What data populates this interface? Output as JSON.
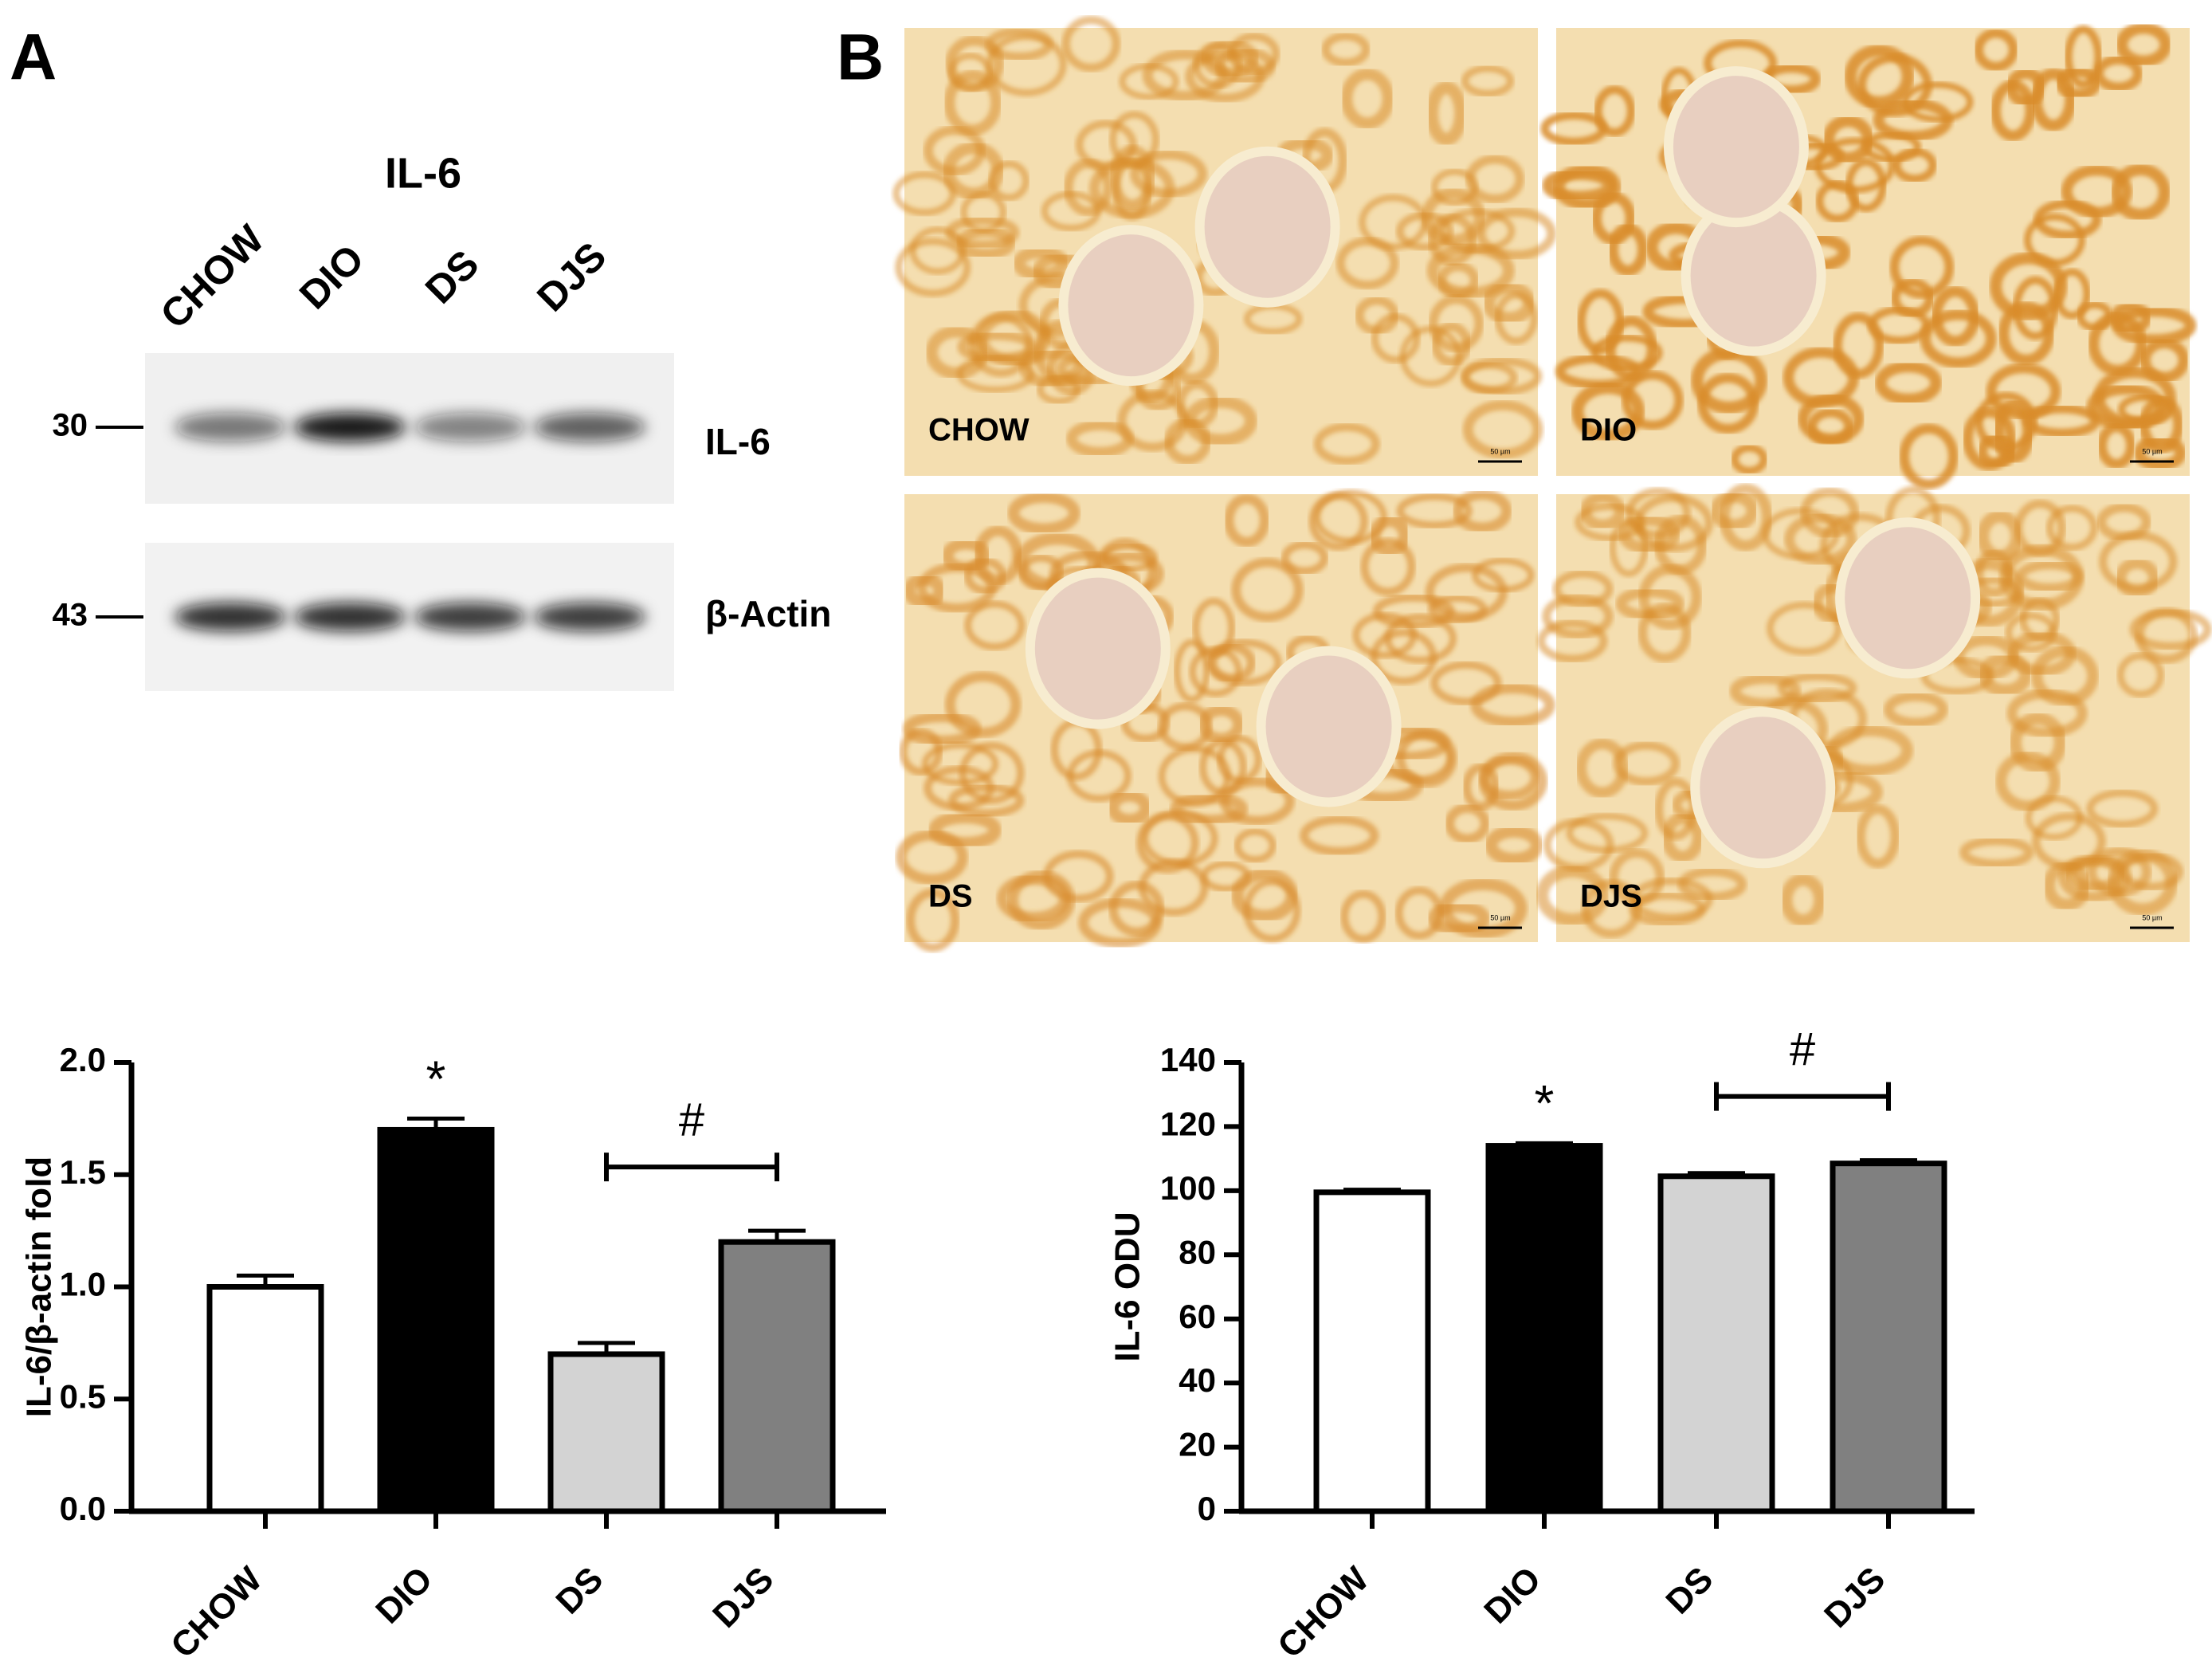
{
  "panels": {
    "a": "A",
    "b": "B"
  },
  "blot": {
    "title": "IL-6",
    "lanes": [
      "CHOW",
      "DIO",
      "DS",
      "DJS"
    ],
    "markers": [
      {
        "size": "30",
        "band": "IL-6"
      },
      {
        "size": "43",
        "band": "β-Actin"
      }
    ]
  },
  "histology": {
    "labels": [
      "CHOW",
      "DIO",
      "DS",
      "DJS"
    ],
    "scale_bar": "50 µm"
  },
  "chart_data": [
    {
      "type": "bar",
      "ylabel": "IL-6/β-actin fold",
      "categories": [
        "CHOW",
        "DIO",
        "DS",
        "DJS"
      ],
      "values": [
        1.0,
        1.7,
        0.7,
        1.2
      ],
      "errors": [
        0.05,
        0.05,
        0.05,
        0.05
      ],
      "colors": [
        "#ffffff",
        "#000000",
        "#d3d3d3",
        "#808080"
      ],
      "ylim": [
        0,
        2
      ],
      "yticks": [
        {
          "value": 0,
          "label": "0.0"
        },
        0.5,
        {
          "value": 1,
          "label": "1.0"
        },
        1.5,
        {
          "value": 2,
          "label": "2.0"
        }
      ],
      "annotations": [
        {
          "text": "*",
          "over": [
            "DIO"
          ]
        },
        {
          "text": "#",
          "over": [
            "DS",
            "DJS"
          ]
        }
      ]
    },
    {
      "type": "bar",
      "ylabel": "IL-6 ODU",
      "categories": [
        "CHOW",
        "DIO",
        "DS",
        "DJS"
      ],
      "values": [
        99.5,
        114,
        104.5,
        108.5
      ],
      "errors": [
        0.8,
        0.8,
        1,
        1
      ],
      "colors": [
        "#ffffff",
        "#000000",
        "#d3d3d3",
        "#808080"
      ],
      "ylim": [
        0,
        140
      ],
      "yticks": [
        0,
        20,
        40,
        60,
        80,
        100,
        120,
        140
      ],
      "annotations": [
        {
          "text": "*",
          "over": [
            "DIO"
          ]
        },
        {
          "text": "#",
          "over": [
            "DS",
            "DJS"
          ]
        }
      ]
    }
  ]
}
